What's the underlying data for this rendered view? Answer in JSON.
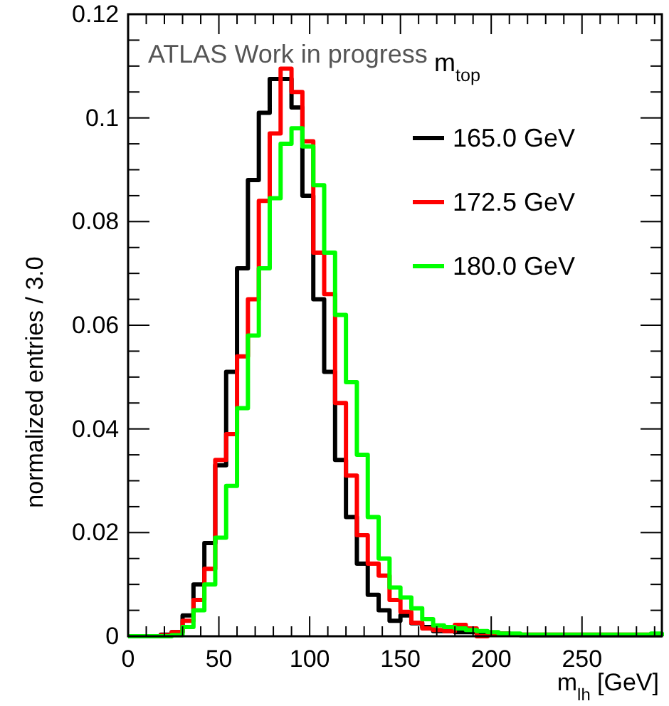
{
  "chart_data": {
    "type": "histogram",
    "xlabel": "m$_{lh}$ [GeV]",
    "ylabel": "normalized entries / 3.0",
    "legend_title": "m$_{top}$",
    "annotations": [
      "ATLAS Work in progress"
    ],
    "bins": [
      0,
      6,
      12,
      18,
      24,
      30,
      36,
      42,
      48,
      54,
      60,
      66,
      72,
      78,
      84,
      90,
      96,
      102,
      108,
      114,
      120,
      126,
      132,
      138,
      144,
      150,
      156,
      162,
      168,
      174,
      180,
      186,
      192,
      198,
      204,
      210,
      216,
      222,
      228,
      234,
      240,
      246,
      252,
      258,
      264,
      270,
      276,
      282,
      288,
      294
    ],
    "series": [
      {
        "name": "165.0 GeV",
        "color": "#000000",
        "values": [
          0,
          0,
          0,
          0.0003,
          0.0008,
          0.004,
          0.01,
          0.018,
          0.033,
          0.051,
          0.071,
          0.088,
          0.101,
          0.1075,
          0.1075,
          0.102,
          0.085,
          0.065,
          0.051,
          0.034,
          0.023,
          0.014,
          0.008,
          0.005,
          0.003,
          0.004,
          0.0025,
          0.0018,
          0.001,
          0.001,
          0.0008,
          0.0008,
          0.0005,
          0.0005,
          0.0005,
          0.0003,
          0.0002,
          0.0002,
          0.0002,
          0.0002,
          0.0002,
          0.0002,
          0.0002,
          0.0002,
          0.0002,
          0.0002,
          0.0002,
          0.0002,
          0.0002
        ]
      },
      {
        "name": "172.5 GeV",
        "color": "#ff0000",
        "values": [
          0,
          0,
          0,
          0.0002,
          0.0008,
          0.003,
          0.007,
          0.013,
          0.034,
          0.039,
          0.054,
          0.065,
          0.084,
          0.097,
          0.1095,
          0.105,
          0.0955,
          0.074,
          0.066,
          0.045,
          0.031,
          0.0195,
          0.014,
          0.0117,
          0.007,
          0.0047,
          0.0026,
          0.0015,
          0.0012,
          0.001,
          0.0022,
          0.0015,
          0,
          0.0005,
          0.0005,
          0.0003,
          0.0003,
          0.0003,
          0.0003,
          0.0003,
          0.0003,
          0.0003,
          0.0003,
          0.0003,
          0.0003,
          0.0003,
          0.0003,
          0.0003,
          0.0003
        ]
      },
      {
        "name": "180.0 GeV",
        "color": "#00ff00",
        "values": [
          0,
          0,
          0,
          0,
          0.0002,
          0.0018,
          0.005,
          0.01,
          0.019,
          0.029,
          0.044,
          0.058,
          0.071,
          0.0845,
          0.095,
          0.098,
          0.0945,
          0.087,
          0.074,
          0.062,
          0.049,
          0.035,
          0.023,
          0.015,
          0.0094,
          0.0075,
          0.0054,
          0.0033,
          0.0021,
          0.0018,
          0.0015,
          0.0012,
          0.001,
          0.0008,
          0.0005,
          0.0005,
          0.0003,
          0.0003,
          0.0003,
          0.0003,
          0.0003,
          0.0003,
          0.0003,
          0.0003,
          0.0003,
          0.0003,
          0.0003,
          0.0003,
          0.0005
        ]
      }
    ],
    "xlim": [
      0,
      294
    ],
    "ylim": [
      0,
      0.12
    ],
    "xticks": [
      0,
      {
        "value": 10,
        "label": null
      },
      {
        "value": 20,
        "label": null
      },
      {
        "value": 30,
        "label": null
      },
      {
        "value": 40,
        "label": null
      },
      50,
      {
        "value": 60,
        "label": null
      },
      {
        "value": 70,
        "label": null
      },
      {
        "value": 80,
        "label": null
      },
      {
        "value": 90,
        "label": null
      },
      100,
      {
        "value": 110,
        "label": null
      },
      {
        "value": 120,
        "label": null
      },
      {
        "value": 130,
        "label": null
      },
      {
        "value": 140,
        "label": null
      },
      150,
      {
        "value": 160,
        "label": null
      },
      {
        "value": 170,
        "label": null
      },
      {
        "value": 180,
        "label": null
      },
      {
        "value": 190,
        "label": null
      },
      200,
      {
        "value": 210,
        "label": null
      },
      {
        "value": 220,
        "label": null
      },
      {
        "value": 230,
        "label": null
      },
      {
        "value": 240,
        "label": null
      },
      250,
      {
        "value": 260,
        "label": null
      },
      {
        "value": 270,
        "label": null
      },
      {
        "value": 280,
        "label": null
      },
      {
        "value": 290,
        "label": null
      }
    ],
    "yticks": [
      0,
      {
        "value": 0.005,
        "label": null
      },
      {
        "value": 0.01,
        "label": null
      },
      {
        "value": 0.015,
        "label": null
      },
      0.02,
      {
        "value": 0.025,
        "label": null
      },
      {
        "value": 0.03,
        "label": null
      },
      {
        "value": 0.035,
        "label": null
      },
      0.04,
      {
        "value": 0.045,
        "label": null
      },
      {
        "value": 0.05,
        "label": null
      },
      {
        "value": 0.055,
        "label": null
      },
      0.06,
      {
        "value": 0.065,
        "label": null
      },
      {
        "value": 0.07,
        "label": null
      },
      {
        "value": 0.075,
        "label": null
      },
      0.08,
      {
        "value": 0.085,
        "label": null
      },
      {
        "value": 0.09,
        "label": null
      },
      {
        "value": 0.095,
        "label": null
      },
      0.1,
      {
        "value": 0.105,
        "label": null
      },
      {
        "value": 0.11,
        "label": null
      },
      {
        "value": 0.115,
        "label": null
      },
      0.12
    ],
    "grid": false,
    "legend": "top right"
  }
}
